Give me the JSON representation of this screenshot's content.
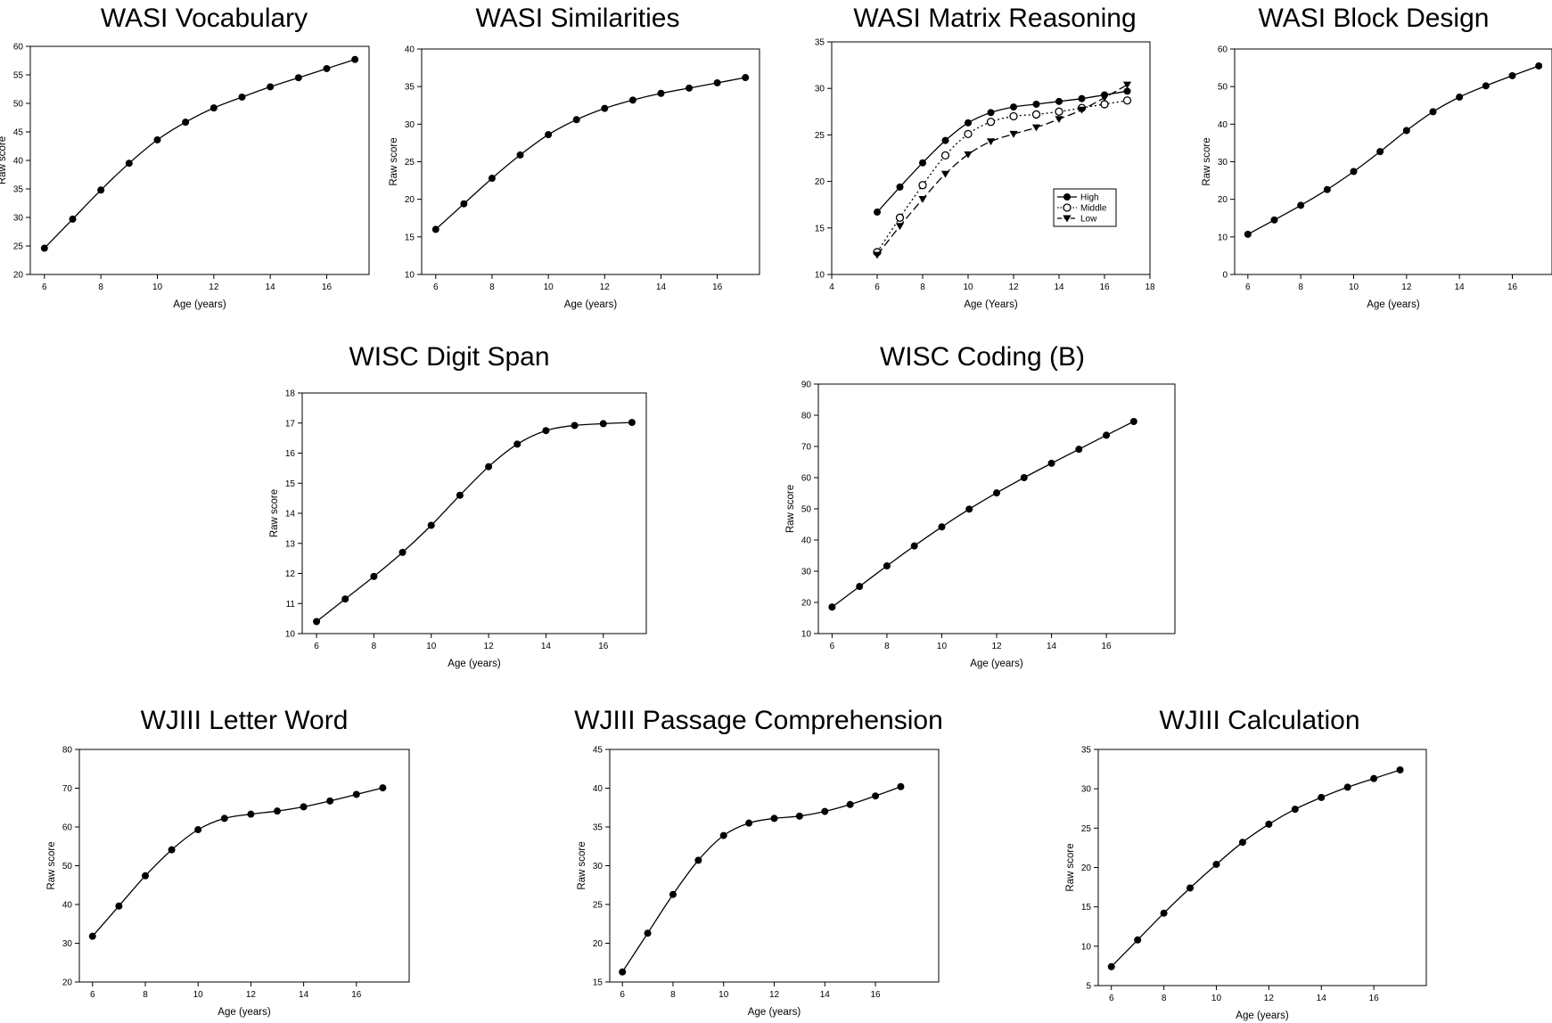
{
  "chart_data": [
    {
      "type": "line",
      "title": "WASI Vocabulary",
      "xlabel": "Age (years)",
      "ylabel": "Raw score",
      "xlim": [
        5.5,
        17.5
      ],
      "ylim": [
        20,
        60
      ],
      "xticks": [
        6,
        8,
        10,
        12,
        14,
        16
      ],
      "yticks": [
        20,
        25,
        30,
        35,
        40,
        45,
        50,
        55,
        60
      ],
      "x": [
        6,
        7,
        8,
        9,
        10,
        11,
        12,
        13,
        14,
        15,
        16,
        17
      ],
      "series": [
        {
          "values": [
            24.6,
            29.7,
            34.8,
            39.5,
            43.6,
            46.7,
            49.2,
            51.1,
            52.9,
            54.5,
            56.1,
            57.7
          ],
          "marker": "circle-filled",
          "line": "solid"
        }
      ]
    },
    {
      "type": "line",
      "title": "WASI Similarities",
      "xlabel": "Age (years)",
      "ylabel": "Raw score",
      "xlim": [
        5.5,
        17.5
      ],
      "ylim": [
        10,
        40
      ],
      "xticks": [
        6,
        8,
        10,
        12,
        14,
        16
      ],
      "yticks": [
        10,
        15,
        20,
        25,
        30,
        35,
        40
      ],
      "x": [
        6,
        7,
        8,
        9,
        10,
        11,
        12,
        13,
        14,
        15,
        16,
        17
      ],
      "series": [
        {
          "values": [
            16.0,
            19.4,
            22.8,
            25.9,
            28.6,
            30.6,
            32.1,
            33.2,
            34.1,
            34.8,
            35.5,
            36.2
          ],
          "marker": "circle-filled",
          "line": "solid"
        }
      ]
    },
    {
      "type": "line",
      "title": "WASI Matrix Reasoning",
      "xlabel": "Age (Years)",
      "ylabel": "",
      "xlim": [
        4,
        18
      ],
      "ylim": [
        10,
        35
      ],
      "xticks": [
        4,
        6,
        8,
        10,
        12,
        14,
        16,
        18
      ],
      "yticks": [
        10,
        15,
        20,
        25,
        30,
        35
      ],
      "x": [
        6,
        7,
        8,
        9,
        10,
        11,
        12,
        13,
        14,
        15,
        16,
        17
      ],
      "legend": "center-right",
      "series": [
        {
          "name": "High",
          "values": [
            16.7,
            19.4,
            22.0,
            24.4,
            26.3,
            27.4,
            28.0,
            28.3,
            28.6,
            28.9,
            29.3,
            29.7
          ],
          "marker": "circle-filled",
          "line": "solid"
        },
        {
          "name": "Middle",
          "values": [
            12.4,
            16.1,
            19.6,
            22.8,
            25.1,
            26.4,
            27.0,
            27.2,
            27.5,
            27.9,
            28.3,
            28.7
          ],
          "marker": "circle-open",
          "line": "dotted"
        },
        {
          "name": "Low",
          "values": [
            12.1,
            15.2,
            18.1,
            20.8,
            22.9,
            24.3,
            25.1,
            25.8,
            26.7,
            27.7,
            29.0,
            30.4
          ],
          "marker": "triangle-down",
          "line": "dashed"
        }
      ]
    },
    {
      "type": "line",
      "title": "WASI Block Design",
      "xlabel": "Age (years)",
      "ylabel": "Raw score",
      "xlim": [
        5.5,
        17.5
      ],
      "ylim": [
        0,
        60
      ],
      "xticks": [
        6,
        8,
        10,
        12,
        14,
        16
      ],
      "yticks": [
        0,
        10,
        20,
        30,
        40,
        50,
        60
      ],
      "x": [
        6,
        7,
        8,
        9,
        10,
        11,
        12,
        13,
        14,
        15,
        16,
        17
      ],
      "series": [
        {
          "values": [
            10.7,
            14.5,
            18.4,
            22.6,
            27.4,
            32.7,
            38.3,
            43.3,
            47.2,
            50.2,
            52.9,
            55.5
          ],
          "marker": "circle-filled",
          "line": "solid"
        }
      ]
    },
    {
      "type": "line",
      "title": "WISC Digit Span",
      "xlabel": "Age (years)",
      "ylabel": "Raw score",
      "xlim": [
        5.5,
        17.5
      ],
      "ylim": [
        10,
        18
      ],
      "xticks": [
        6,
        8,
        10,
        12,
        14,
        16
      ],
      "yticks": [
        10,
        11,
        12,
        13,
        14,
        15,
        16,
        17,
        18
      ],
      "x": [
        6,
        7,
        8,
        9,
        10,
        11,
        12,
        13,
        14,
        15,
        16,
        17
      ],
      "series": [
        {
          "values": [
            10.4,
            11.15,
            11.9,
            12.7,
            13.6,
            14.6,
            15.55,
            16.3,
            16.75,
            16.92,
            16.98,
            17.02
          ],
          "marker": "circle-filled",
          "line": "solid"
        }
      ]
    },
    {
      "type": "line",
      "title": "WISC Coding (B)",
      "xlabel": "Age (years)",
      "ylabel": "Raw score",
      "xlim": [
        5.5,
        18.5
      ],
      "ylim": [
        10,
        90
      ],
      "xticks": [
        6,
        8,
        10,
        12,
        14,
        16
      ],
      "yticks": [
        10,
        20,
        30,
        40,
        50,
        60,
        70,
        80,
        90
      ],
      "x": [
        6,
        7,
        8,
        9,
        10,
        11,
        12,
        13,
        14,
        15,
        16,
        17
      ],
      "series": [
        {
          "values": [
            18.5,
            25.1,
            31.7,
            38.1,
            44.2,
            49.9,
            55.1,
            60.0,
            64.6,
            69.1,
            73.6,
            78.0
          ],
          "marker": "circle-filled",
          "line": "solid"
        }
      ]
    },
    {
      "type": "line",
      "title": "WJIII Letter Word",
      "xlabel": "Age (years)",
      "ylabel": "Raw score",
      "xlim": [
        5.5,
        18.0
      ],
      "ylim": [
        20,
        80
      ],
      "xticks": [
        6,
        8,
        10,
        12,
        14,
        16
      ],
      "yticks": [
        20,
        30,
        40,
        50,
        60,
        70,
        80
      ],
      "x": [
        6,
        7,
        8,
        9,
        10,
        11,
        12,
        13,
        14,
        15,
        16,
        17
      ],
      "series": [
        {
          "values": [
            31.8,
            39.6,
            47.4,
            54.1,
            59.3,
            62.2,
            63.3,
            64.1,
            65.2,
            66.7,
            68.4,
            70.1
          ],
          "marker": "circle-filled",
          "line": "solid"
        }
      ]
    },
    {
      "type": "line",
      "title": "WJIII Passage Comprehension",
      "xlabel": "Age (years)",
      "ylabel": "Raw score",
      "xlim": [
        5.5,
        18.5
      ],
      "ylim": [
        15,
        45
      ],
      "xticks": [
        6,
        8,
        10,
        12,
        14,
        16
      ],
      "yticks": [
        15,
        20,
        25,
        30,
        35,
        40,
        45
      ],
      "x": [
        6,
        7,
        8,
        9,
        10,
        11,
        12,
        13,
        14,
        15,
        16,
        17
      ],
      "series": [
        {
          "values": [
            16.3,
            21.3,
            26.3,
            30.7,
            33.9,
            35.5,
            36.1,
            36.4,
            37.0,
            37.9,
            39.0,
            40.2
          ],
          "marker": "circle-filled",
          "line": "solid"
        }
      ]
    },
    {
      "type": "line",
      "title": "WJIII Calculation",
      "xlabel": "Age (years)",
      "ylabel": "Raw score",
      "xlim": [
        5.5,
        18.0
      ],
      "ylim": [
        5,
        35
      ],
      "xticks": [
        6,
        8,
        10,
        12,
        14,
        16
      ],
      "yticks": [
        5,
        10,
        15,
        20,
        25,
        30,
        35
      ],
      "x": [
        6,
        7,
        8,
        9,
        10,
        11,
        12,
        13,
        14,
        15,
        16,
        17
      ],
      "series": [
        {
          "values": [
            7.4,
            10.8,
            14.2,
            17.4,
            20.4,
            23.2,
            25.5,
            27.4,
            28.9,
            30.2,
            31.3,
            32.4
          ],
          "marker": "circle-filled",
          "line": "solid"
        }
      ]
    }
  ]
}
